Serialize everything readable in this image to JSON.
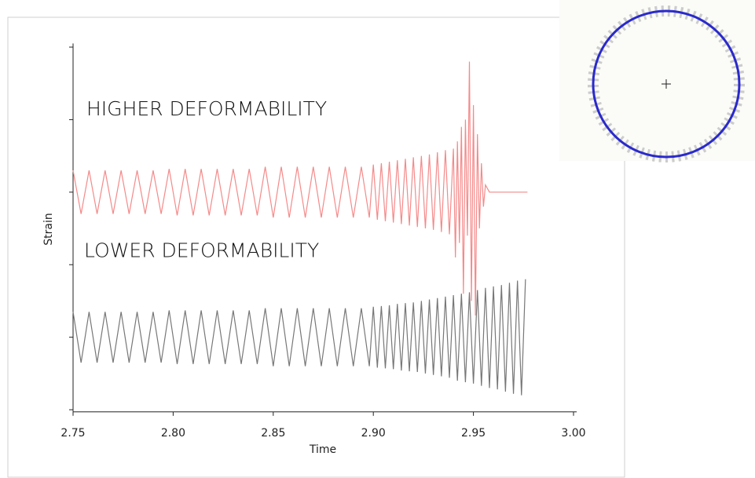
{
  "chart_data": {
    "type": "line",
    "xlabel": "Time",
    "ylabel": "Strain",
    "xlim": [
      2.75,
      3.0
    ],
    "xticks": [
      2.75,
      {
        "value": 2.8,
        "label": "2.80"
      },
      2.85,
      {
        "value": 2.9,
        "label": "2.90"
      },
      2.95,
      {
        "value": 3.0,
        "label": "3.00"
      }
    ],
    "ylim": [
      -0.03,
      5.05
    ],
    "yticks": [
      0,
      1,
      2,
      3,
      4,
      5
    ],
    "series": [
      {
        "name": "HIGHER DEFORMABILITY",
        "color": "#f48a8a",
        "x": [
          2.75,
          2.754,
          2.758,
          2.762,
          2.766,
          2.77,
          2.774,
          2.778,
          2.782,
          2.786,
          2.79,
          2.794,
          2.798,
          2.802,
          2.806,
          2.81,
          2.814,
          2.818,
          2.822,
          2.826,
          2.83,
          2.834,
          2.838,
          2.842,
          2.846,
          2.85,
          2.854,
          2.858,
          2.862,
          2.866,
          2.87,
          2.874,
          2.878,
          2.882,
          2.886,
          2.89,
          2.894,
          2.898,
          2.9,
          2.902,
          2.904,
          2.906,
          2.908,
          2.91,
          2.912,
          2.914,
          2.916,
          2.918,
          2.92,
          2.922,
          2.924,
          2.926,
          2.928,
          2.93,
          2.932,
          2.934,
          2.936,
          2.938,
          2.94,
          2.941,
          2.942,
          2.943,
          2.944,
          2.945,
          2.946,
          2.947,
          2.948,
          2.949,
          2.95,
          2.951,
          2.952,
          2.953,
          2.954,
          2.955,
          2.956,
          2.958,
          2.977
        ],
        "values": [
          3.3,
          2.7,
          3.3,
          2.7,
          3.3,
          2.7,
          3.3,
          2.7,
          3.3,
          2.7,
          3.3,
          2.7,
          3.32,
          2.68,
          3.32,
          2.68,
          3.32,
          2.68,
          3.32,
          2.68,
          3.32,
          2.68,
          3.32,
          2.68,
          3.35,
          2.65,
          3.35,
          2.65,
          3.35,
          2.65,
          3.35,
          2.65,
          3.35,
          2.65,
          3.35,
          2.65,
          3.35,
          2.65,
          3.38,
          2.62,
          3.4,
          2.6,
          3.42,
          2.58,
          3.44,
          2.56,
          3.46,
          2.54,
          3.48,
          2.52,
          3.5,
          2.5,
          3.52,
          2.48,
          3.55,
          2.45,
          3.58,
          2.42,
          3.6,
          2.1,
          3.7,
          2.3,
          3.9,
          1.6,
          4.0,
          2.4,
          4.8,
          1.5,
          4.2,
          1.3,
          3.8,
          2.5,
          3.4,
          2.8,
          3.1,
          3,
          3
        ]
      },
      {
        "name": "LOWER DEFORMABILITY",
        "color": "#777777",
        "x": [
          2.75,
          2.754,
          2.758,
          2.762,
          2.766,
          2.77,
          2.774,
          2.778,
          2.782,
          2.786,
          2.79,
          2.794,
          2.798,
          2.802,
          2.806,
          2.81,
          2.814,
          2.818,
          2.822,
          2.826,
          2.83,
          2.834,
          2.838,
          2.842,
          2.846,
          2.85,
          2.854,
          2.858,
          2.862,
          2.866,
          2.87,
          2.874,
          2.878,
          2.882,
          2.886,
          2.89,
          2.894,
          2.898,
          2.9,
          2.902,
          2.904,
          2.906,
          2.908,
          2.91,
          2.912,
          2.914,
          2.916,
          2.918,
          2.92,
          2.922,
          2.924,
          2.926,
          2.928,
          2.93,
          2.932,
          2.934,
          2.936,
          2.938,
          2.94,
          2.942,
          2.944,
          2.946,
          2.948,
          2.95,
          2.952,
          2.954,
          2.956,
          2.958,
          2.96,
          2.962,
          2.964,
          2.966,
          2.968,
          2.97,
          2.972,
          2.974,
          2.976
        ],
        "values": [
          1.35,
          0.65,
          1.35,
          0.65,
          1.35,
          0.65,
          1.35,
          0.65,
          1.35,
          0.65,
          1.35,
          0.65,
          1.37,
          0.63,
          1.37,
          0.63,
          1.37,
          0.63,
          1.37,
          0.63,
          1.37,
          0.63,
          1.37,
          0.63,
          1.4,
          0.6,
          1.4,
          0.6,
          1.4,
          0.6,
          1.4,
          0.6,
          1.4,
          0.6,
          1.4,
          0.6,
          1.4,
          0.6,
          1.42,
          0.58,
          1.43,
          0.57,
          1.44,
          0.56,
          1.46,
          0.54,
          1.47,
          0.53,
          1.48,
          0.52,
          1.5,
          0.5,
          1.52,
          0.48,
          1.54,
          0.46,
          1.56,
          0.44,
          1.58,
          0.4,
          1.6,
          0.38,
          1.62,
          0.36,
          1.65,
          0.33,
          1.68,
          0.3,
          1.7,
          0.28,
          1.72,
          0.25,
          1.75,
          0.22,
          1.78,
          0.2,
          1.8
        ]
      }
    ]
  }
}
